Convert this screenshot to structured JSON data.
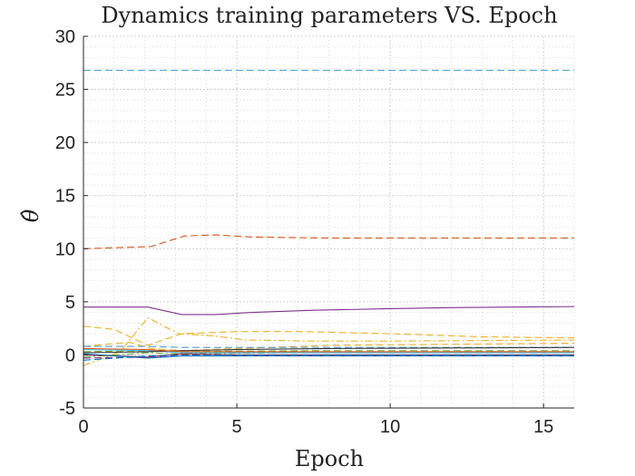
{
  "chart_data": {
    "type": "line",
    "title": "Dynamics training parameters VS. Epoch",
    "xlabel": "Epoch",
    "ylabel": "θ̂",
    "xlim": [
      0,
      16
    ],
    "ylim": [
      -5,
      30
    ],
    "xticks": [
      0,
      5,
      10,
      15
    ],
    "yticks": [
      -5,
      0,
      5,
      10,
      15,
      20,
      25,
      30
    ],
    "xtick_labels": [
      "0",
      "5",
      "10",
      "15"
    ],
    "ytick_labels": [
      "-5",
      "0",
      "5",
      "10",
      "15",
      "20",
      "25",
      "30"
    ],
    "grid": true,
    "minor_grid": true,
    "series": [
      {
        "color": "#4d9fd6",
        "dash": "dashed",
        "x": [
          0,
          16
        ],
        "y": [
          26.8,
          26.8
        ]
      },
      {
        "color": "#d9561b",
        "dash": "dashed",
        "x": [
          0,
          2.2,
          3.3,
          4.3,
          5.5,
          8,
          10,
          12,
          14,
          16
        ],
        "y": [
          10.0,
          10.2,
          11.2,
          11.3,
          11.1,
          11.0,
          11.0,
          11.0,
          11.0,
          11.0
        ]
      },
      {
        "color": "#7e2f8e",
        "dash": "solid",
        "x": [
          0,
          2.1,
          3.2,
          4.3,
          5.5,
          7.5,
          10,
          12,
          14,
          16
        ],
        "y": [
          4.5,
          4.5,
          3.8,
          3.8,
          4.0,
          4.2,
          4.35,
          4.45,
          4.5,
          4.55
        ]
      },
      {
        "color": "#edb120",
        "dash": "dashed",
        "x": [
          0,
          1.0,
          2.1,
          3.2,
          5.0,
          7.0,
          10,
          13,
          16
        ],
        "y": [
          2.7,
          2.4,
          0.9,
          2.0,
          2.2,
          2.2,
          2.0,
          1.7,
          1.6
        ]
      },
      {
        "color": "#edb120",
        "dash": "dashdot",
        "x": [
          0,
          1.2,
          2.1,
          3.1,
          4.2,
          5.3,
          7.5,
          10,
          13,
          16
        ],
        "y": [
          -1.0,
          0.3,
          3.5,
          2.0,
          1.8,
          1.4,
          1.3,
          1.3,
          1.35,
          1.4
        ]
      },
      {
        "color": "#edb120",
        "dash": "dashed",
        "x": [
          0,
          1.5,
          2.2,
          3.2,
          5,
          8,
          12,
          16
        ],
        "y": [
          0.8,
          1.2,
          0.6,
          0.4,
          0.6,
          0.9,
          1.0,
          1.1
        ]
      },
      {
        "color": "#4d9fd6",
        "dash": "dashed",
        "x": [
          0,
          2.1,
          3.2,
          5,
          8,
          12,
          16
        ],
        "y": [
          0.8,
          0.8,
          0.7,
          0.7,
          0.7,
          0.7,
          0.7
        ]
      },
      {
        "color": "#77ac30",
        "dash": "dashed",
        "x": [
          0,
          2.1,
          3.2,
          5,
          8,
          12,
          16
        ],
        "y": [
          0.3,
          0.4,
          0.3,
          0.35,
          0.4,
          0.4,
          0.4
        ]
      },
      {
        "color": "#77ac30",
        "dash": "dashdot",
        "x": [
          0,
          2.1,
          3.2,
          5,
          8,
          12,
          16
        ],
        "y": [
          -0.2,
          0.2,
          0.1,
          0.15,
          0.25,
          0.3,
          0.3
        ]
      },
      {
        "color": "#4dbeee",
        "dash": "solid",
        "x": [
          0,
          2.1,
          3.2,
          5,
          8,
          12,
          16
        ],
        "y": [
          0.5,
          0.4,
          0.2,
          0.2,
          0.2,
          0.2,
          0.2
        ]
      },
      {
        "color": "#a2142f",
        "dash": "solid",
        "x": [
          0,
          2.1,
          3.2,
          5,
          8,
          12,
          16
        ],
        "y": [
          0.0,
          -0.2,
          0.1,
          0.0,
          0.0,
          0.0,
          0.0
        ]
      },
      {
        "color": "#0072bd",
        "dash": "solid",
        "x": [
          0,
          2.1,
          3.2,
          5,
          8,
          12,
          16
        ],
        "y": [
          0.1,
          -0.3,
          -0.1,
          -0.1,
          -0.1,
          -0.1,
          -0.1
        ]
      },
      {
        "color": "#7e2f8e",
        "dash": "dashed",
        "x": [
          0,
          2.1,
          3.2,
          5,
          8,
          12,
          16
        ],
        "y": [
          -0.3,
          -0.2,
          0.0,
          0.0,
          0.0,
          0.0,
          0.0
        ]
      },
      {
        "color": "#333333",
        "dash": "solid",
        "x": [
          0,
          2.1,
          3.2,
          5,
          8,
          12,
          16
        ],
        "y": [
          0.2,
          0.3,
          0.4,
          0.5,
          0.6,
          0.65,
          0.7
        ]
      },
      {
        "color": "#d9561b",
        "dash": "solid",
        "x": [
          0,
          2.1,
          3.2,
          5,
          8,
          12,
          16
        ],
        "y": [
          0.6,
          0.5,
          0.3,
          0.3,
          0.3,
          0.3,
          0.3
        ]
      },
      {
        "color": "#0072bd",
        "dash": "dashed",
        "x": [
          0,
          2.1,
          3.2,
          5,
          8,
          12,
          16
        ],
        "y": [
          -0.5,
          -0.1,
          0.0,
          0.0,
          0.0,
          0.0,
          0.0
        ]
      }
    ]
  }
}
